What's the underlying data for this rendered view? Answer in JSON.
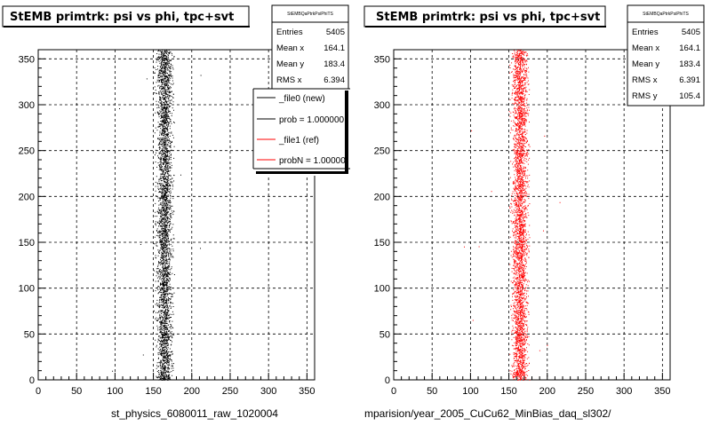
{
  "footer_text": "",
  "chart_data": [
    {
      "type": "scatter",
      "title": "StEMB primtrk: psi vs phi, tpc+svt",
      "xlabel": "st_physics_6080011_raw_1020004",
      "ylabel": "",
      "xlim": [
        0,
        360
      ],
      "ylim": [
        0,
        360
      ],
      "x_ticks": [
        0,
        50,
        100,
        150,
        200,
        250,
        300,
        350
      ],
      "y_ticks": [
        0,
        50,
        100,
        150,
        200,
        250,
        300,
        350
      ],
      "grid": true,
      "color": "#000000",
      "stats_box": {
        "header": "StEMBQaPtrkPsiPhiTS",
        "rows": [
          {
            "label": "Entries",
            "value": "5405"
          },
          {
            "label": "Mean x",
            "value": "164.1"
          },
          {
            "label": "Mean y",
            "value": "183.4"
          },
          {
            "label": "RMS x",
            "value": "6.394"
          }
        ]
      },
      "legend": {
        "placement": "top-right",
        "entries": [
          {
            "label": "_file0 (new)",
            "color": "#000000"
          },
          {
            "label": "prob = 1.000000",
            "color": "#000000"
          },
          {
            "label": "_file1 (ref)",
            "color": "#ff0000"
          },
          {
            "label": "probN = 1.000000",
            "color": "#ff0000"
          }
        ]
      },
      "distribution": {
        "entries": 5405,
        "mean_x": 164.1,
        "rms_x": 6.394,
        "mean_y": 183.4,
        "x_min": 150,
        "x_max": 177
      }
    },
    {
      "type": "scatter",
      "title": "StEMB primtrk: psi vs phi, tpc+svt",
      "xlabel": "mparision/year_2005_CuCu62_MinBias_daq_sl302/",
      "ylabel": "",
      "xlim": [
        0,
        360
      ],
      "ylim": [
        0,
        360
      ],
      "x_ticks": [
        0,
        50,
        100,
        150,
        200,
        250,
        300,
        350
      ],
      "y_ticks": [
        0,
        50,
        100,
        150,
        200,
        250,
        300,
        350
      ],
      "grid": true,
      "color": "#ff0000",
      "stats_box": {
        "header": "StEMBQaPtrkPsiPhiTS",
        "rows": [
          {
            "label": "Entries",
            "value": "5405"
          },
          {
            "label": "Mean x",
            "value": "164.1"
          },
          {
            "label": "Mean y",
            "value": "183.4"
          },
          {
            "label": "RMS x",
            "value": "6.391"
          },
          {
            "label": "RMS y",
            "value": "105.4"
          }
        ]
      },
      "distribution": {
        "entries": 5405,
        "mean_x": 164.1,
        "rms_x": 6.391,
        "mean_y": 183.4,
        "x_min": 150,
        "x_max": 177
      }
    }
  ]
}
